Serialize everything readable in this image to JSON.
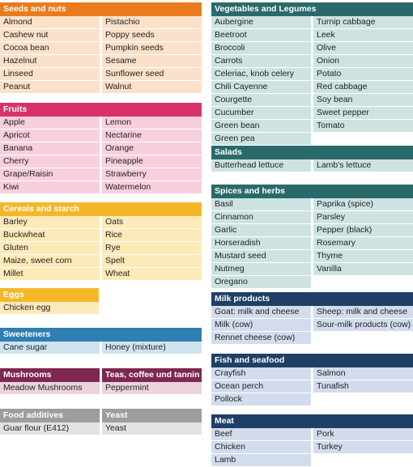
{
  "sections": {
    "seeds_nuts": {
      "title": "Seeds and nuts",
      "left": [
        "Almond",
        "Cashew nut",
        "Cocoa bean",
        "Hazelnut",
        "Linseed",
        "Peanut"
      ],
      "right": [
        "Pistachio",
        "Poppy seeds",
        "Pumpkin seeds",
        "Sesame",
        "Sunflower seed",
        "Walnut"
      ]
    },
    "fruits": {
      "title": "Fruits",
      "left": [
        "Apple",
        "Apricot",
        "Banana",
        "Cherry",
        "Grape/Raisin",
        "Kiwi"
      ],
      "right": [
        "Lemon",
        "Nectarine",
        "Orange",
        "Pineapple",
        "Strawberry",
        "Watermelon"
      ]
    },
    "cereals": {
      "title": "Cereals and starch",
      "left": [
        "Barley",
        "Buckwheat",
        "Gluten",
        "Maize, sweet corn",
        "Millet"
      ],
      "right": [
        "Oats",
        "Rice",
        "Rye",
        "Spelt",
        "Wheat"
      ]
    },
    "eggs": {
      "title": "Eggs",
      "left": [
        "Chicken egg"
      ]
    },
    "sweeteners": {
      "title": "Sweeteners",
      "left": [
        "Cane sugar"
      ],
      "right": [
        "Honey (mixture)"
      ]
    },
    "mushrooms": {
      "title": "Mushrooms",
      "left": [
        "Meadow Mushrooms"
      ]
    },
    "teas": {
      "title": "Teas, coffee und tannin",
      "left": [
        "Peppermint"
      ]
    },
    "food_additives": {
      "title": "Food additives",
      "left": [
        "Guar flour (E412)"
      ]
    },
    "yeast": {
      "title": "Yeast",
      "left": [
        "Yeast"
      ]
    },
    "vegetables": {
      "title": "Vegetables and Legumes",
      "left": [
        "Aubergine",
        "Beetroot",
        "Broccoli",
        "Carrots",
        "Celeriac, knob celery",
        "Chili Cayenne",
        "Courgette",
        "Cucumber",
        "Green bean",
        "Green pea"
      ],
      "right": [
        "Turnip cabbage",
        "Leek",
        "Olive",
        "Onion",
        "Potato",
        "Red cabbage",
        "Soy bean",
        "Sweet pepper",
        "Tomato"
      ]
    },
    "salads": {
      "title": "Salads",
      "left": [
        "Butterhead lettuce"
      ],
      "right": [
        "Lamb's lettuce"
      ]
    },
    "spices": {
      "title": "Spices and herbs",
      "left": [
        "Basil",
        "Cinnamon",
        "Garlic",
        "Horseradish",
        "Mustard seed",
        "Nutmeg",
        "Oregano"
      ],
      "right": [
        "Paprika (spice)",
        "Parsley",
        "Pepper (black)",
        "Rosemary",
        "Thyme",
        "Vanilla"
      ]
    },
    "milk": {
      "title": "Milk products",
      "left": [
        "Goat: milk and cheese",
        "Milk (cow)",
        "Rennet cheese (cow)"
      ],
      "right": [
        "Sheep: milk and cheese",
        "Sour-milk products (cow)"
      ]
    },
    "fish": {
      "title": "Fish and seafood",
      "left": [
        "Crayfish",
        "Ocean perch",
        "Pollock"
      ],
      "right": [
        "Salmon",
        "Tunafish"
      ]
    },
    "meat": {
      "title": "Meat",
      "left": [
        "Beef",
        "Chicken",
        "Lamb"
      ],
      "right": [
        "Pork",
        "Turkey"
      ]
    }
  },
  "colors": {
    "orange": "#ea7b1d",
    "pink": "#d7336a",
    "yellow": "#f5b72a",
    "blue": "#2f7fb2",
    "plum": "#7e2751",
    "grey": "#9d9d9d",
    "teal": "#2a6a6b",
    "navy": "#1f3f66"
  }
}
